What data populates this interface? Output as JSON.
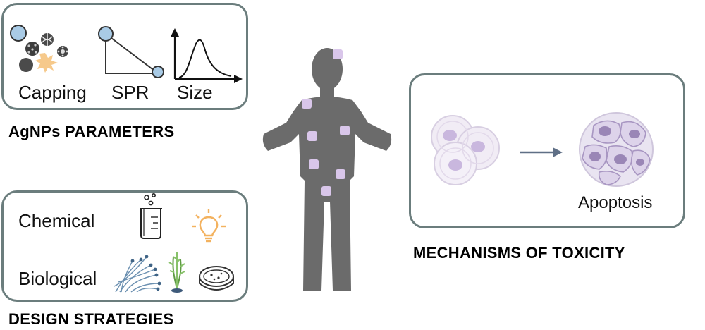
{
  "parameters": {
    "heading": "AgNPs PARAMETERS",
    "labels": [
      "Capping",
      "SPR",
      "Size"
    ]
  },
  "strategies": {
    "heading": "DESIGN STRATEGIES",
    "chemical_label": "Chemical",
    "biological_label": "Biological"
  },
  "mechanisms": {
    "heading": "MECHANISMS OF TOXICITY",
    "apoptosis_label": "Apoptosis"
  },
  "colors": {
    "frame": "#6b7d7d",
    "body": "#6b6b6b",
    "organ_spot": "#d9c6ea",
    "particle_blue": "#a9cbe6",
    "spiky": "#f6c98b",
    "bulb": "#f3b25f",
    "plant": "#88c26a",
    "cell": "#eee6f4",
    "nucleus": "#c9b7de",
    "arrow": "#5f6f86"
  }
}
